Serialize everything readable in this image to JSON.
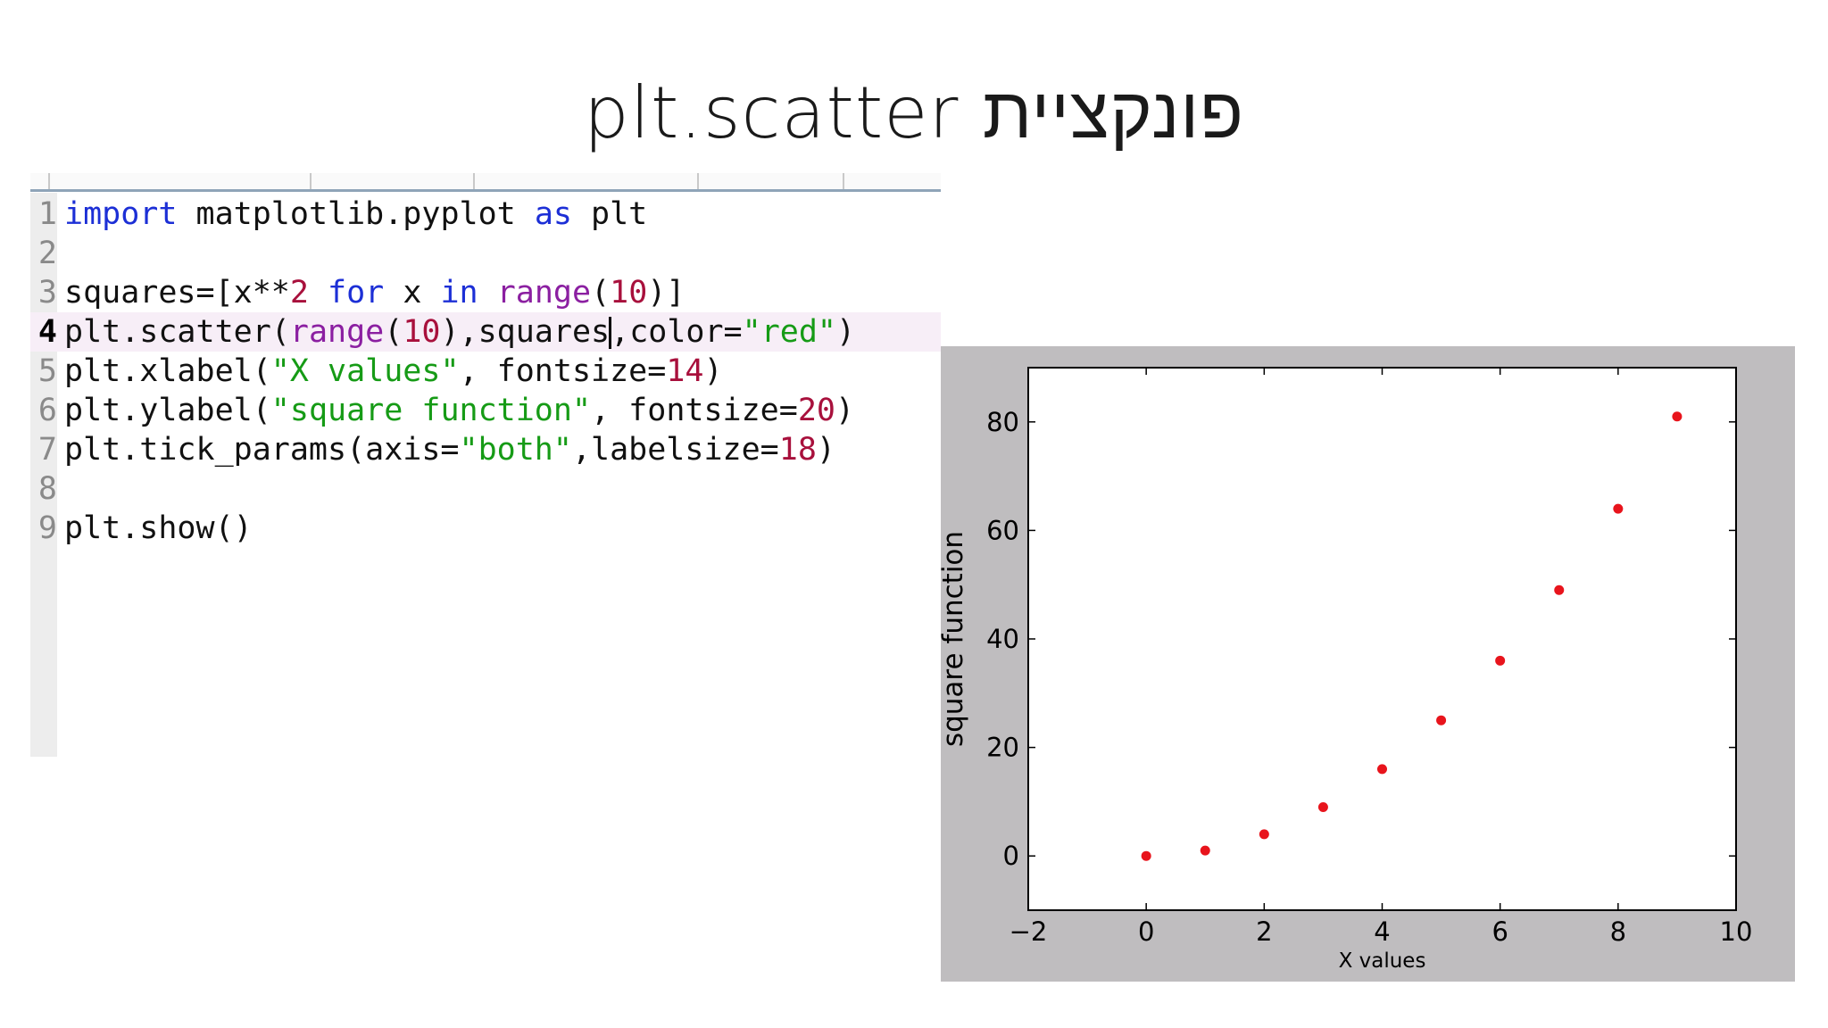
{
  "slide": {
    "title": "פונקציית plt.scatter"
  },
  "editor": {
    "lines": [
      {
        "n": "1",
        "segments": [
          [
            "kw",
            "import"
          ],
          [
            "pl",
            " matplotlib.pyplot "
          ],
          [
            "kw",
            "as"
          ],
          [
            "pl",
            " plt"
          ]
        ]
      },
      {
        "n": "2",
        "segments": []
      },
      {
        "n": "3",
        "segments": [
          [
            "pl",
            "squares=[x**"
          ],
          [
            "num",
            "2"
          ],
          [
            "pl",
            " "
          ],
          [
            "kw",
            "for"
          ],
          [
            "pl",
            " x "
          ],
          [
            "kw",
            "in"
          ],
          [
            "pl",
            " "
          ],
          [
            "bi",
            "range"
          ],
          [
            "pl",
            "("
          ],
          [
            "num",
            "10"
          ],
          [
            "pl",
            ")]"
          ]
        ]
      },
      {
        "n": "4",
        "current": true,
        "segments": [
          [
            "pl",
            "plt.scatter("
          ],
          [
            "bi",
            "range"
          ],
          [
            "pl",
            "("
          ],
          [
            "num",
            "10"
          ],
          [
            "pl",
            "),squares"
          ],
          [
            "cursor",
            ""
          ],
          [
            "pl",
            ",color="
          ],
          [
            "str",
            "\"red\""
          ],
          [
            "pl",
            ")"
          ]
        ]
      },
      {
        "n": "5",
        "segments": [
          [
            "pl",
            "plt.xlabel("
          ],
          [
            "str",
            "\"X values\""
          ],
          [
            "pl",
            ", fontsize="
          ],
          [
            "num",
            "14"
          ],
          [
            "pl",
            ")"
          ]
        ]
      },
      {
        "n": "6",
        "segments": [
          [
            "pl",
            "plt.ylabel("
          ],
          [
            "str",
            "\"square function\""
          ],
          [
            "pl",
            ", fontsize="
          ],
          [
            "num",
            "20"
          ],
          [
            "pl",
            ")"
          ]
        ]
      },
      {
        "n": "7",
        "segments": [
          [
            "pl",
            "plt.tick_params(axis="
          ],
          [
            "str",
            "\"both\""
          ],
          [
            "pl",
            ",labelsize="
          ],
          [
            "num",
            "18"
          ],
          [
            "pl",
            ")"
          ]
        ]
      },
      {
        "n": "8",
        "segments": []
      },
      {
        "n": "9",
        "segments": [
          [
            "pl",
            "plt.show()"
          ]
        ]
      }
    ]
  },
  "chart_data": {
    "type": "scatter",
    "x": [
      0,
      1,
      2,
      3,
      4,
      5,
      6,
      7,
      8,
      9
    ],
    "y": [
      0,
      1,
      4,
      9,
      16,
      25,
      36,
      49,
      64,
      81
    ],
    "color": "#e8141c",
    "xlabel": "X values",
    "ylabel": "square function",
    "xlim": [
      -2,
      10
    ],
    "ylim": [
      -10,
      90
    ],
    "xticks": [
      "−2",
      "0",
      "2",
      "4",
      "6",
      "8",
      "10"
    ],
    "xtick_values": [
      -2,
      0,
      2,
      4,
      6,
      8,
      10
    ],
    "yticks": [
      "0",
      "20",
      "40",
      "60",
      "80"
    ],
    "ytick_values": [
      0,
      20,
      40,
      60,
      80
    ],
    "grid": false,
    "figure_background": "#bfbdbf",
    "axes_background": "#ffffff"
  }
}
